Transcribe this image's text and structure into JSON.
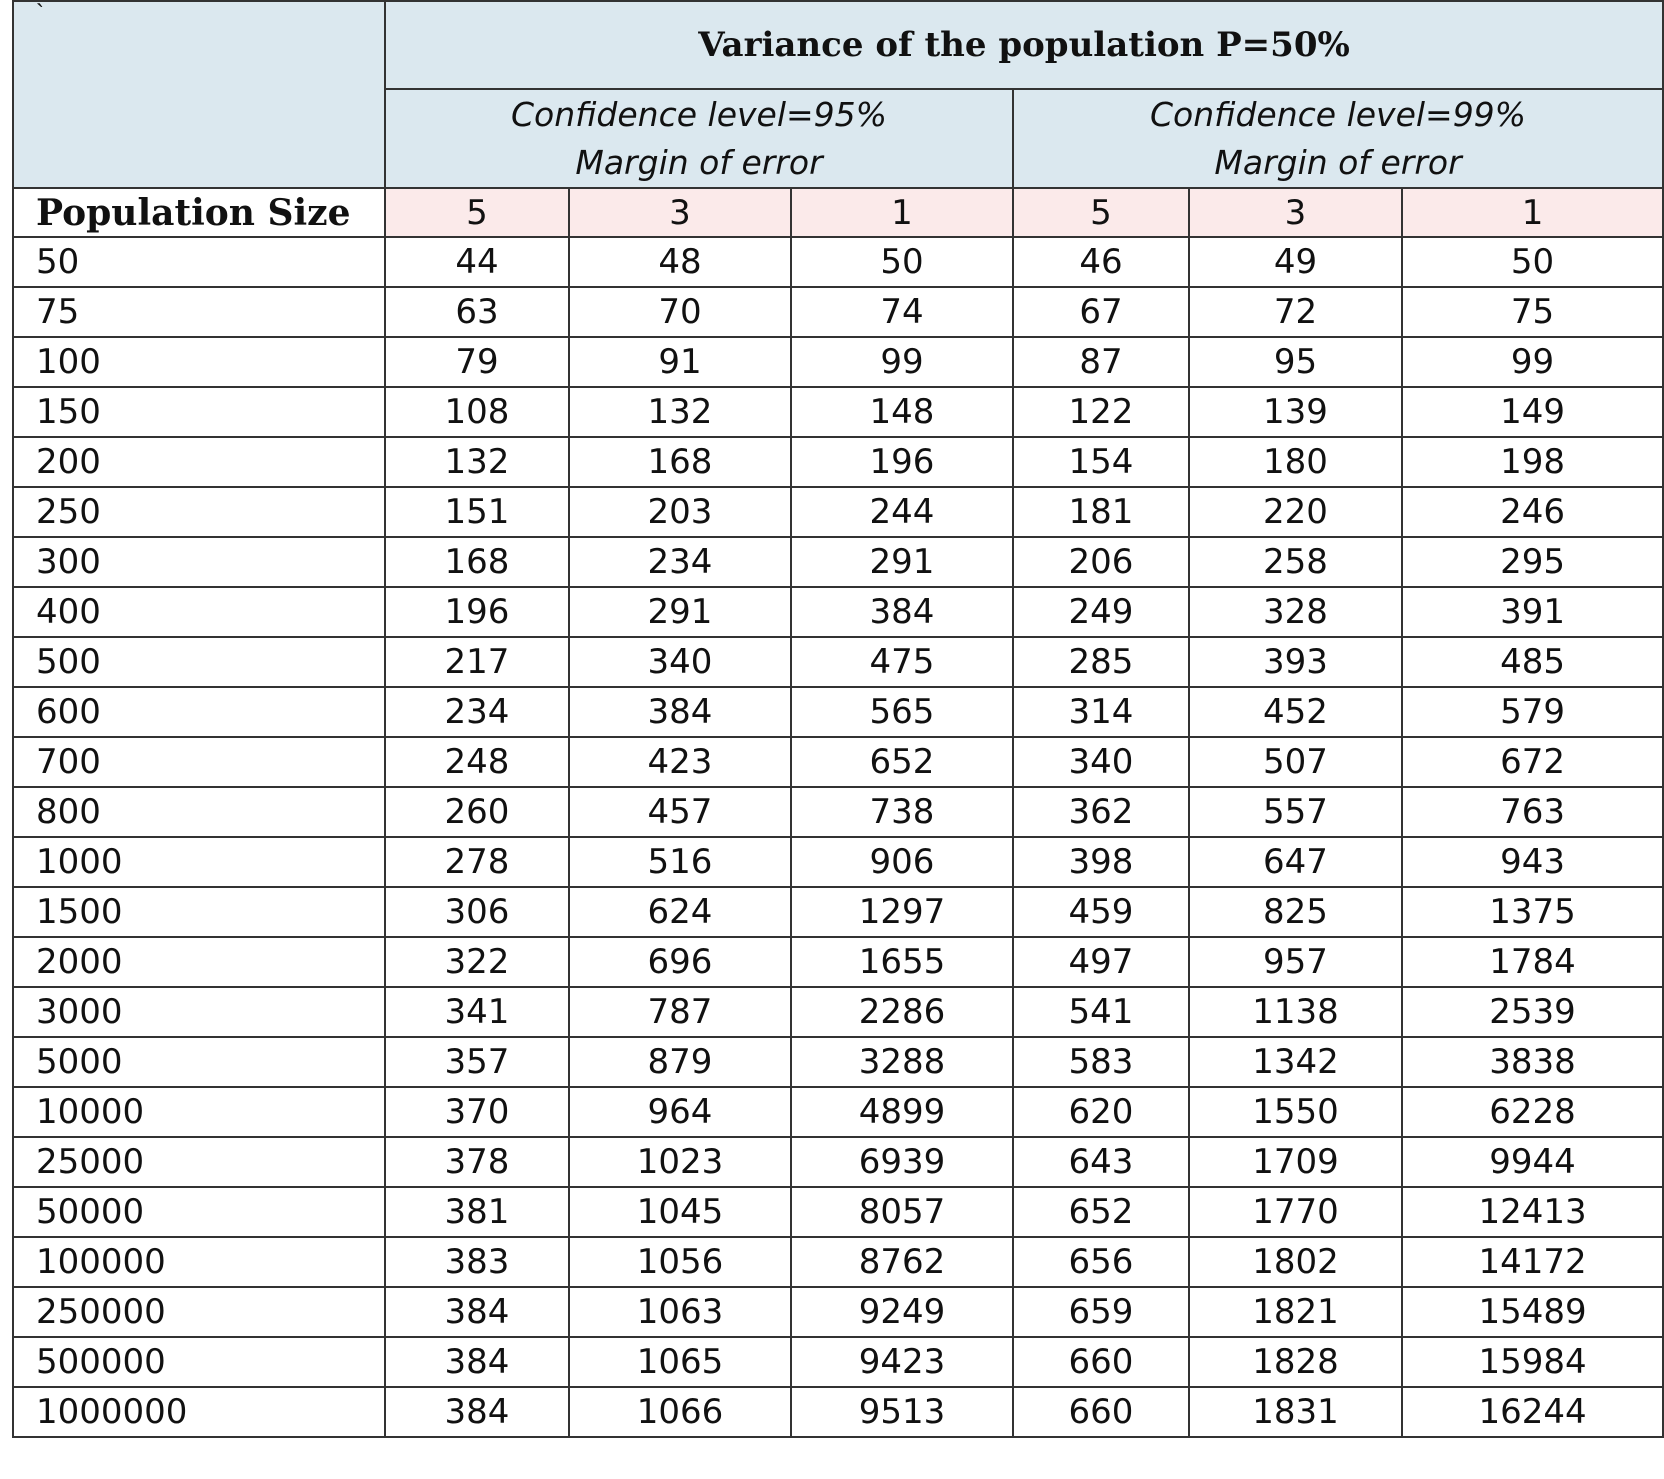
{
  "table": {
    "corner_mark": "`",
    "title": "Variance of the population P=50%",
    "groups": [
      {
        "confidence": "Confidence level=95%",
        "subtitle": "Margin of error"
      },
      {
        "confidence": "Confidence level=99%",
        "subtitle": "Margin of error"
      }
    ],
    "population_header": "Population Size",
    "margins": [
      "5",
      "3",
      "1",
      "5",
      "3",
      "1"
    ],
    "rows": [
      {
        "pop": "50",
        "v": [
          "44",
          "48",
          "50",
          "46",
          "49",
          "50"
        ]
      },
      {
        "pop": "75",
        "v": [
          "63",
          "70",
          "74",
          "67",
          "72",
          "75"
        ]
      },
      {
        "pop": "100",
        "v": [
          "79",
          "91",
          "99",
          "87",
          "95",
          "99"
        ]
      },
      {
        "pop": "150",
        "v": [
          "108",
          "132",
          "148",
          "122",
          "139",
          "149"
        ]
      },
      {
        "pop": "200",
        "v": [
          "132",
          "168",
          "196",
          "154",
          "180",
          "198"
        ]
      },
      {
        "pop": "250",
        "v": [
          "151",
          "203",
          "244",
          "181",
          "220",
          "246"
        ]
      },
      {
        "pop": "300",
        "v": [
          "168",
          "234",
          "291",
          "206",
          "258",
          "295"
        ]
      },
      {
        "pop": "400",
        "v": [
          "196",
          "291",
          "384",
          "249",
          "328",
          "391"
        ]
      },
      {
        "pop": "500",
        "v": [
          "217",
          "340",
          "475",
          "285",
          "393",
          "485"
        ]
      },
      {
        "pop": "600",
        "v": [
          "234",
          "384",
          "565",
          "314",
          "452",
          "579"
        ]
      },
      {
        "pop": "700",
        "v": [
          "248",
          "423",
          "652",
          "340",
          "507",
          "672"
        ]
      },
      {
        "pop": "800",
        "v": [
          "260",
          "457",
          "738",
          "362",
          "557",
          "763"
        ]
      },
      {
        "pop": "1000",
        "v": [
          "278",
          "516",
          "906",
          "398",
          "647",
          "943"
        ]
      },
      {
        "pop": "1500",
        "v": [
          "306",
          "624",
          "1297",
          "459",
          "825",
          "1375"
        ]
      },
      {
        "pop": "2000",
        "v": [
          "322",
          "696",
          "1655",
          "497",
          "957",
          "1784"
        ]
      },
      {
        "pop": "3000",
        "v": [
          "341",
          "787",
          "2286",
          "541",
          "1138",
          "2539"
        ]
      },
      {
        "pop": "5000",
        "v": [
          "357",
          "879",
          "3288",
          "583",
          "1342",
          "3838"
        ]
      },
      {
        "pop": "10000",
        "v": [
          "370",
          "964",
          "4899",
          "620",
          "1550",
          "6228"
        ]
      },
      {
        "pop": "25000",
        "v": [
          "378",
          "1023",
          "6939",
          "643",
          "1709",
          "9944"
        ]
      },
      {
        "pop": "50000",
        "v": [
          "381",
          "1045",
          "8057",
          "652",
          "1770",
          "12413"
        ]
      },
      {
        "pop": "100000",
        "v": [
          "383",
          "1056",
          "8762",
          "656",
          "1802",
          "14172"
        ]
      },
      {
        "pop": "250000",
        "v": [
          "384",
          "1063",
          "9249",
          "659",
          "1821",
          "15489"
        ]
      },
      {
        "pop": "500000",
        "v": [
          "384",
          "1065",
          "9423",
          "660",
          "1828",
          "15984"
        ]
      },
      {
        "pop": "1000000",
        "v": [
          "384",
          "1066",
          "9513",
          "660",
          "1831",
          "16244"
        ]
      }
    ]
  },
  "colors": {
    "header_blue": "#dbe8ef",
    "margin_row_pink": "#fbeaea",
    "border": "#333333"
  }
}
